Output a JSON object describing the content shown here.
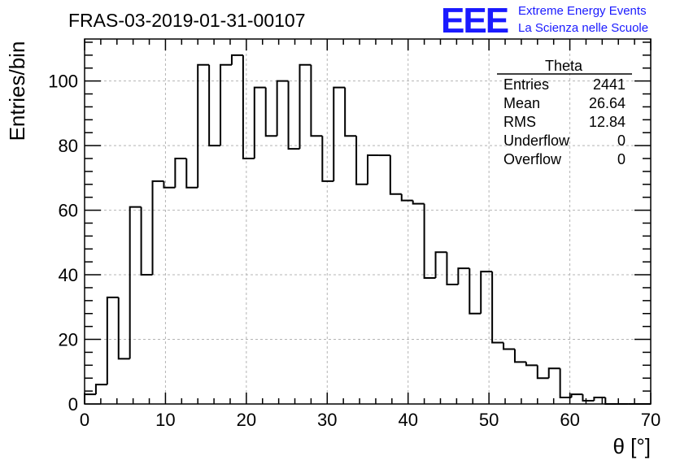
{
  "header": {
    "run_title": "FRAS-03-2019-01-31-00107",
    "logo_letters": "EEE",
    "logo_line1": "Extreme Energy Events",
    "logo_line2": "La Scienza nelle Scuole"
  },
  "stats_box": {
    "title": "Theta",
    "rows": [
      {
        "label": "Entries",
        "value": "2441"
      },
      {
        "label": "Mean",
        "value": "26.64"
      },
      {
        "label": "RMS",
        "value": "12.84"
      },
      {
        "label": "Underflow",
        "value": "0"
      },
      {
        "label": "Overflow",
        "value": "0"
      }
    ]
  },
  "chart_data": {
    "type": "bar",
    "histogram": true,
    "title": "FRAS-03-2019-01-31-00107",
    "xlabel": "θ [°]",
    "ylabel": "Entries/bin",
    "xlim": [
      0,
      70
    ],
    "ylim": [
      0,
      113
    ],
    "bin_width": 1.4,
    "bin_edges_start": 0,
    "values": [
      3,
      6,
      33,
      14,
      61,
      40,
      69,
      67,
      76,
      67,
      105,
      80,
      105,
      108,
      76,
      98,
      83,
      100,
      79,
      105,
      83,
      69,
      98,
      83,
      68,
      77,
      77,
      65,
      63,
      62,
      39,
      47,
      37,
      42,
      28,
      41,
      19,
      17,
      13,
      12,
      8,
      11,
      2,
      3,
      1,
      2,
      0,
      0,
      0,
      0
    ],
    "x_ticks": [
      "0",
      "10",
      "20",
      "30",
      "40",
      "50",
      "60",
      "70"
    ],
    "y_ticks": [
      "0",
      "20",
      "40",
      "60",
      "80",
      "100"
    ],
    "grid": true,
    "line_color": "#000000"
  }
}
